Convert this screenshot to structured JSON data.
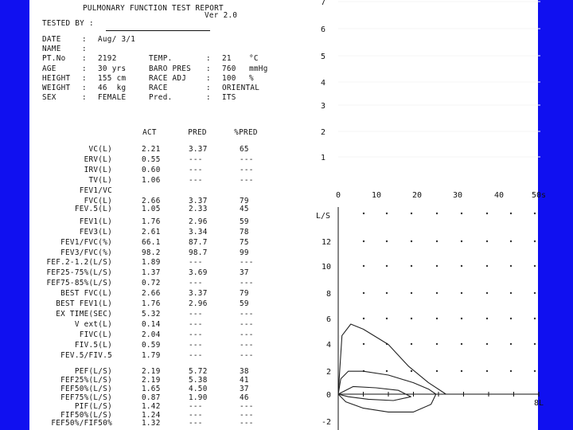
{
  "report": {
    "title": "PULMONARY FUNCTION TEST REPORT",
    "version": "Ver 2.0",
    "tested_by_label": "TESTED BY :"
  },
  "patient": {
    "rows": [
      {
        "l1": "DATE",
        "v1": "Aug/ 3/1",
        "l2": "",
        "v2": "",
        "u2": ""
      },
      {
        "l1": "NAME",
        "v1": "",
        "l2": "",
        "v2": "",
        "u2": ""
      },
      {
        "l1": "PT.No",
        "v1": "2192",
        "l2": "TEMP.",
        "v2": "21",
        "u2": "°C"
      },
      {
        "l1": "AGE",
        "v1": "30 yrs",
        "l2": "BARO PRES",
        "v2": "760",
        "u2": "mmHg"
      },
      {
        "l1": "HEIGHT",
        "v1": "155 cm",
        "l2": "RACE ADJ",
        "v2": "100",
        "u2": "%"
      },
      {
        "l1": "WEIGHT",
        "v1": "46  kg",
        "l2": "RACE",
        "v2": "ORIENTAL",
        "u2": ""
      },
      {
        "l1": "SEX",
        "v1": "FEMALE",
        "l2": "Pred.",
        "v2": "ITS",
        "u2": ""
      }
    ]
  },
  "results": {
    "headers": [
      "ACT",
      "PRED",
      "%PRED"
    ],
    "rows": [
      {
        "label": "VC(L)",
        "act": "2.21",
        "pred": "3.37",
        "pct": "65"
      },
      {
        "label": "ERV(L)",
        "act": "0.55",
        "pred": "---",
        "pct": "---"
      },
      {
        "label": "IRV(L)",
        "act": "0.60",
        "pred": "---",
        "pct": "---"
      },
      {
        "label": "TV(L)",
        "act": "1.06",
        "pred": "---",
        "pct": "---"
      },
      {
        "label": "FEV1/VC",
        "act": "",
        "pred": "",
        "pct": ""
      },
      {
        "label": "FVC(L)",
        "act": "2.66",
        "pred": "3.37",
        "pct": "79"
      },
      {
        "label": "FEV.5(L)",
        "act": "1.05",
        "pred": "2.33",
        "pct": "45"
      },
      {
        "label": "FEV1(L)",
        "act": "1.76",
        "pred": "2.96",
        "pct": "59"
      },
      {
        "label": "FEV3(L)",
        "act": "2.61",
        "pred": "3.34",
        "pct": "78"
      },
      {
        "label": "FEV1/FVC(%)",
        "act": "66.1",
        "pred": "87.7",
        "pct": "75"
      },
      {
        "label": "FEV3/FVC(%)",
        "act": "98.2",
        "pred": "98.7",
        "pct": "99"
      },
      {
        "label": "FEF.2-1.2(L/S)",
        "act": "1.89",
        "pred": "---",
        "pct": "---"
      },
      {
        "label": "FEF25-75%(L/S)",
        "act": "1.37",
        "pred": "3.69",
        "pct": "37"
      },
      {
        "label": "FEF75-85%(L/S)",
        "act": "0.72",
        "pred": "---",
        "pct": "---"
      },
      {
        "label": "BEST FVC(L)",
        "act": "2.66",
        "pred": "3.37",
        "pct": "79"
      },
      {
        "label": "BEST FEV1(L)",
        "act": "1.76",
        "pred": "2.96",
        "pct": "59"
      },
      {
        "label": "EX TIME(SEC)",
        "act": "5.32",
        "pred": "---",
        "pct": "---"
      },
      {
        "label": "V ext(L)",
        "act": "0.14",
        "pred": "---",
        "pct": "---"
      },
      {
        "label": "FIVC(L)",
        "act": "2.04",
        "pred": "---",
        "pct": "---"
      },
      {
        "label": "FIV.5(L)",
        "act": "0.59",
        "pred": "---",
        "pct": "---"
      },
      {
        "label": "FEV.5/FIV.5",
        "act": "1.79",
        "pred": "---",
        "pct": "---"
      }
    ],
    "rows2": [
      {
        "label": "PEF(L/S)",
        "act": "2.19",
        "pred": "5.72",
        "pct": "38"
      },
      {
        "label": "FEF25%(L/S)",
        "act": "2.19",
        "pred": "5.38",
        "pct": "41"
      },
      {
        "label": "FEF50%(L/S)",
        "act": "1.65",
        "pred": "4.50",
        "pct": "37"
      },
      {
        "label": "FEF75%(L/S)",
        "act": "0.87",
        "pred": "1.90",
        "pct": "46"
      },
      {
        "label": "PIF(L/S)",
        "act": "1.42",
        "pred": "---",
        "pct": "---"
      },
      {
        "label": "FIF50%(L/S)",
        "act": "1.24",
        "pred": "---",
        "pct": "---"
      },
      {
        "label": "FEF50%/FIF50%",
        "act": "1.32",
        "pred": "---",
        "pct": "---"
      }
    ]
  },
  "chart_data": [
    {
      "type": "line",
      "y_ticks": [
        "1",
        "2",
        "3",
        "4",
        "5",
        "6",
        "7"
      ],
      "x_ticks": [
        "0",
        "10",
        "20",
        "30",
        "40",
        "50s"
      ],
      "xlim": [
        0,
        50
      ],
      "ylim": [
        0,
        7
      ],
      "series": []
    },
    {
      "type": "line",
      "ylabel": "L/S",
      "xlabel_end": "8L",
      "y_ticks": [
        "12",
        "10",
        "8",
        "6",
        "4",
        "2",
        "0",
        "-2"
      ],
      "xlim": [
        0,
        8
      ],
      "ylim": [
        -2.2,
        14
      ],
      "series": [
        {
          "values": [
            [
              0,
              0
            ],
            [
              0.15,
              4.6
            ],
            [
              0.5,
              5.5
            ],
            [
              1.0,
              5.1
            ],
            [
              2.0,
              3.9
            ],
            [
              2.8,
              2.2
            ],
            [
              3.6,
              0.9
            ],
            [
              4.3,
              0
            ]
          ]
        },
        {
          "values": [
            [
              0,
              0
            ],
            [
              0.1,
              1.2
            ],
            [
              0.4,
              1.8
            ],
            [
              1.0,
              1.8
            ],
            [
              2.0,
              1.5
            ],
            [
              3.0,
              0.9
            ],
            [
              3.6,
              0.4
            ],
            [
              3.9,
              0
            ]
          ]
        },
        {
          "values": [
            [
              3.9,
              0
            ],
            [
              3.7,
              -0.8
            ],
            [
              3.0,
              -1.4
            ],
            [
              2.0,
              -1.4
            ],
            [
              1.0,
              -1.1
            ],
            [
              0.3,
              -0.6
            ],
            [
              0,
              0
            ]
          ]
        },
        {
          "values": [
            [
              0,
              0
            ],
            [
              0.6,
              0.6
            ],
            [
              1.5,
              0.5
            ],
            [
              2.4,
              0.3
            ],
            [
              2.9,
              -0.2
            ],
            [
              2.2,
              -0.5
            ],
            [
              1.2,
              -0.4
            ],
            [
              0.4,
              -0.2
            ],
            [
              0,
              0
            ]
          ]
        }
      ]
    }
  ]
}
